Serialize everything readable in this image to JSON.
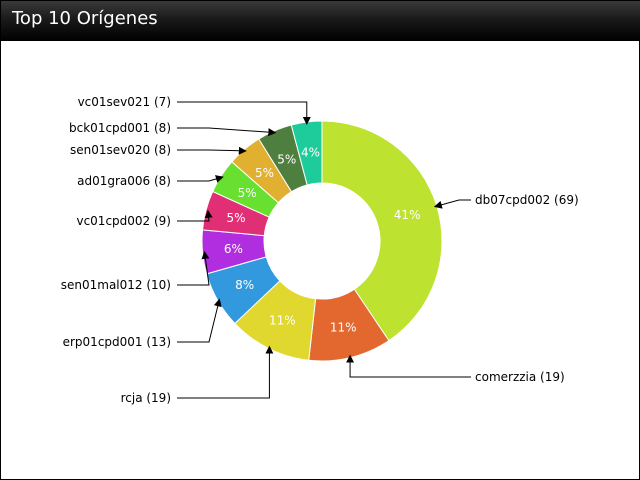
{
  "window": {
    "title": "Top 10 Orígenes"
  },
  "chart_data": {
    "type": "pie",
    "donut": true,
    "title": "Top 10 Orígenes",
    "slices": [
      {
        "name": "db07cpd002",
        "value": 69,
        "label": "db07cpd002 (69)",
        "pct": "41%",
        "color": "#bde22f"
      },
      {
        "name": "comerzzia",
        "value": 19,
        "label": "comerzzia (19)",
        "pct": "11%",
        "color": "#e26830"
      },
      {
        "name": "rcja",
        "value": 19,
        "label": "rcja (19)",
        "pct": "11%",
        "color": "#e0d82e"
      },
      {
        "name": "erp01cpd001",
        "value": 13,
        "label": "erp01cpd001 (13)",
        "pct": "8%",
        "color": "#3299df"
      },
      {
        "name": "sen01mal012",
        "value": 10,
        "label": "sen01mal012 (10)",
        "pct": "6%",
        "color": "#b02ee0"
      },
      {
        "name": "vc01cpd002",
        "value": 9,
        "label": "vc01cpd002 (9)",
        "pct": "5%",
        "color": "#e02f75"
      },
      {
        "name": "ad01gra006",
        "value": 8,
        "label": "ad01gra006 (8)",
        "pct": "5%",
        "color": "#67e02f"
      },
      {
        "name": "sen01sev020",
        "value": 8,
        "label": "sen01sev020 (8)",
        "pct": "5%",
        "color": "#e2b030"
      },
      {
        "name": "bck01cpd001",
        "value": 8,
        "label": "bck01cpd001 (8)",
        "pct": "5%",
        "color": "#4e7f3e"
      },
      {
        "name": "vc01sev021",
        "value": 7,
        "label": "vc01sev021 (7)",
        "pct": "4%",
        "color": "#1ecc9b"
      }
    ]
  }
}
